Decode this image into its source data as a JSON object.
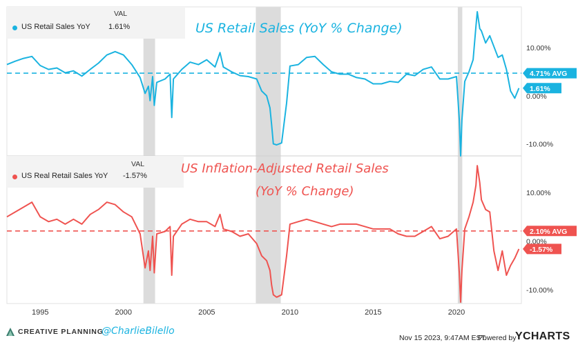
{
  "chart_data": [
    {
      "type": "line",
      "title": "US Retail Sales (YoY % Change)",
      "legend_header": "VAL",
      "series": [
        {
          "name": "US Retail Sales YoY",
          "color": "#1ab3e0",
          "last_value_label": "1.61%",
          "x": [
            1993.0,
            1993.5,
            1994.0,
            1994.5,
            1995.0,
            1995.5,
            1996.0,
            1996.5,
            1997.0,
            1997.5,
            1998.0,
            1998.5,
            1999.0,
            1999.5,
            2000.0,
            2000.5,
            2001.0,
            2001.3,
            2001.5,
            2001.6,
            2001.75,
            2001.85,
            2002.0,
            2002.5,
            2002.8,
            2002.9,
            2003.0,
            2003.5,
            2004.0,
            2004.5,
            2005.0,
            2005.5,
            2005.8,
            2006.0,
            2006.5,
            2007.0,
            2007.5,
            2008.0,
            2008.3,
            2008.6,
            2008.8,
            2008.9,
            2009.0,
            2009.2,
            2009.5,
            2009.8,
            2010.0,
            2010.5,
            2011.0,
            2011.5,
            2012.0,
            2012.5,
            2013.0,
            2013.5,
            2014.0,
            2014.5,
            2015.0,
            2015.5,
            2016.0,
            2016.5,
            2017.0,
            2017.5,
            2018.0,
            2018.5,
            2019.0,
            2019.5,
            2020.0,
            2020.17,
            2020.25,
            2020.33,
            2020.5,
            2020.75,
            2021.0,
            2021.17,
            2021.25,
            2021.4,
            2021.5,
            2021.75,
            2022.0,
            2022.5,
            2022.75,
            2023.0,
            2023.25,
            2023.5,
            2023.75
          ],
          "y": [
            6.5,
            7.2,
            7.8,
            8.2,
            6.3,
            5.5,
            5.8,
            4.8,
            5.2,
            4.1,
            5.5,
            6.8,
            8.5,
            9.2,
            8.5,
            6.5,
            3.8,
            0.5,
            2.0,
            -1.0,
            4.0,
            -2.0,
            2.8,
            3.5,
            4.5,
            -4.5,
            3.5,
            5.5,
            7.0,
            6.5,
            7.5,
            6.0,
            9.0,
            6.0,
            5.0,
            4.2,
            4.0,
            3.5,
            1.0,
            0.0,
            -2.5,
            -6.0,
            -10.0,
            -10.2,
            -9.8,
            -1.5,
            6.2,
            6.5,
            8.0,
            8.2,
            6.5,
            5.0,
            4.5,
            4.5,
            3.8,
            3.5,
            2.5,
            2.5,
            3.0,
            2.8,
            4.5,
            4.2,
            5.5,
            6.0,
            3.5,
            3.5,
            4.0,
            -5.0,
            -12.5,
            -5.0,
            3.0,
            5.0,
            7.5,
            14.5,
            17.5,
            14.0,
            13.5,
            11.0,
            12.5,
            8.0,
            8.5,
            5.5,
            1.0,
            -0.5,
            1.6
          ]
        }
      ],
      "average": {
        "value": 4.71,
        "label": "4.71% AVG"
      },
      "ylim": [
        -12.5,
        18.5
      ],
      "y_ticks": [
        {
          "value": 10,
          "label": "10.00%"
        },
        {
          "value": 0,
          "label": "0.00%"
        },
        {
          "value": -10,
          "label": "-10.00%"
        }
      ],
      "recession_shading": [
        [
          2001.2,
          2001.9
        ],
        [
          2007.95,
          2009.45
        ],
        [
          2020.08,
          2020.35
        ]
      ]
    },
    {
      "type": "line",
      "title_lines": [
        "US Inflation-Adjusted Retail Sales",
        "(YoY % Change)"
      ],
      "legend_header": "VAL",
      "series": [
        {
          "name": "US Real Retail Sales YoY",
          "color": "#ef5350",
          "last_value_label": "-1.57%",
          "x": [
            1993.0,
            1993.5,
            1994.0,
            1994.5,
            1995.0,
            1995.5,
            1996.0,
            1996.5,
            1997.0,
            1997.5,
            1998.0,
            1998.5,
            1999.0,
            1999.5,
            2000.0,
            2000.5,
            2001.0,
            2001.3,
            2001.5,
            2001.6,
            2001.75,
            2001.85,
            2002.0,
            2002.5,
            2002.8,
            2002.9,
            2003.0,
            2003.5,
            2004.0,
            2004.5,
            2005.0,
            2005.5,
            2005.8,
            2006.0,
            2006.5,
            2007.0,
            2007.5,
            2008.0,
            2008.3,
            2008.6,
            2008.8,
            2008.9,
            2009.0,
            2009.2,
            2009.5,
            2009.8,
            2010.0,
            2010.5,
            2011.0,
            2011.5,
            2012.0,
            2012.5,
            2013.0,
            2013.5,
            2014.0,
            2014.5,
            2015.0,
            2015.5,
            2016.0,
            2016.5,
            2017.0,
            2017.5,
            2018.0,
            2018.5,
            2019.0,
            2019.5,
            2020.0,
            2020.17,
            2020.25,
            2020.33,
            2020.5,
            2020.75,
            2021.0,
            2021.17,
            2021.25,
            2021.4,
            2021.5,
            2021.75,
            2022.0,
            2022.25,
            2022.5,
            2022.75,
            2023.0,
            2023.25,
            2023.5,
            2023.75
          ],
          "y": [
            5.0,
            6.0,
            7.0,
            8.0,
            5.0,
            4.0,
            4.5,
            3.5,
            4.5,
            3.5,
            5.5,
            6.5,
            8.0,
            7.5,
            6.0,
            5.0,
            1.5,
            -5.5,
            -2.0,
            -6.0,
            1.0,
            -6.5,
            1.5,
            2.0,
            3.0,
            -7.0,
            1.0,
            3.5,
            4.5,
            4.0,
            4.0,
            3.0,
            5.5,
            2.5,
            2.0,
            1.0,
            1.5,
            -0.5,
            -3.0,
            -4.0,
            -6.0,
            -9.0,
            -11.0,
            -11.5,
            -11.0,
            -3.0,
            3.5,
            4.0,
            4.5,
            4.0,
            3.5,
            3.0,
            3.5,
            3.5,
            3.5,
            3.0,
            2.5,
            2.5,
            2.5,
            1.5,
            1.0,
            1.0,
            2.0,
            3.0,
            0.5,
            1.0,
            2.5,
            -6.5,
            -12.5,
            -6.0,
            2.5,
            5.0,
            8.0,
            11.5,
            15.5,
            12.0,
            8.5,
            6.5,
            6.0,
            -2.0,
            -6.0,
            -2.0,
            -7.0,
            -5.0,
            -3.5,
            -1.6
          ]
        }
      ],
      "average": {
        "value": 2.1,
        "label": "2.10% AVG"
      },
      "ylim": [
        -12.8,
        17.5
      ],
      "y_ticks": [
        {
          "value": 10,
          "label": "10.00%"
        },
        {
          "value": 0,
          "label": "0.00%"
        },
        {
          "value": -10,
          "label": "-10.00%"
        }
      ],
      "x_ticks": [
        {
          "value": 1995,
          "label": "1995"
        },
        {
          "value": 2000,
          "label": "2000"
        },
        {
          "value": 2005,
          "label": "2005"
        },
        {
          "value": 2010,
          "label": "2010"
        },
        {
          "value": 2015,
          "label": "2015"
        },
        {
          "value": 2020,
          "label": "2020"
        }
      ],
      "xlim": [
        1993.0,
        2023.9
      ],
      "recession_shading": [
        [
          2001.2,
          2001.9
        ],
        [
          2007.95,
          2009.45
        ],
        [
          2020.08,
          2020.35
        ]
      ]
    }
  ],
  "footer": {
    "brand": "CREATIVE PLANNING",
    "handle": "@CharlieBilello",
    "timestamp": "Nov 15 2023, 9:47AM EST.",
    "powered_by": "Powered by",
    "ycharts_logo": "YCHARTS"
  }
}
